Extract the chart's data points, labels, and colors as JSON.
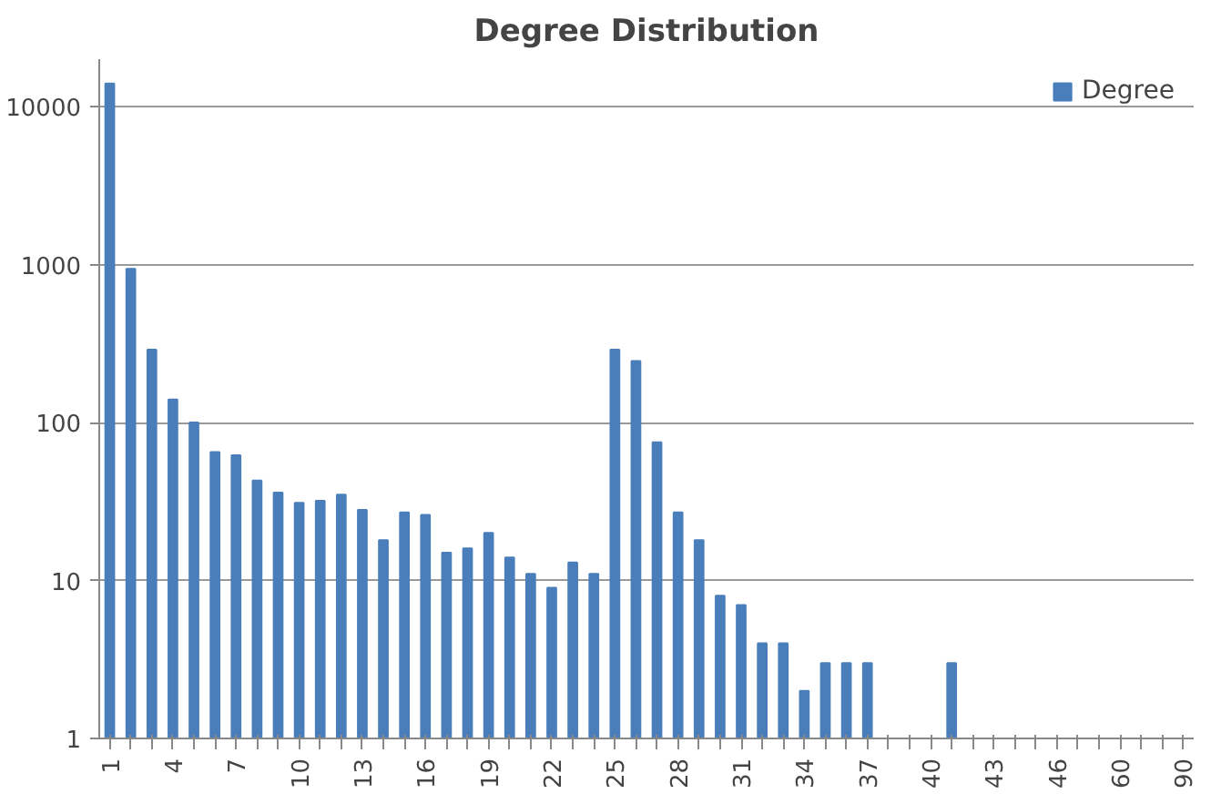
{
  "chart_data": {
    "type": "bar",
    "title": "Degree Distribution",
    "categories": [
      "1",
      null,
      null,
      "4",
      null,
      null,
      "7",
      null,
      null,
      "10",
      null,
      null,
      "13",
      null,
      null,
      "16",
      null,
      null,
      "19",
      null,
      null,
      "22",
      null,
      null,
      "25",
      null,
      null,
      "28",
      null,
      null,
      "31",
      null,
      null,
      "34",
      null,
      null,
      "37",
      null,
      null,
      "40",
      null,
      null,
      "43",
      null,
      null,
      "46",
      null,
      null,
      "60",
      null,
      null,
      "90"
    ],
    "series": [
      {
        "name": "Degree",
        "color": "#4a7ebb",
        "values": [
          14000,
          940,
          290,
          140,
          100,
          65,
          62,
          43,
          36,
          31,
          32,
          35,
          28,
          18,
          27,
          26,
          15,
          16,
          20,
          14,
          11,
          9,
          13,
          11,
          290,
          245,
          75,
          27,
          18,
          8,
          7,
          4,
          4,
          2,
          3,
          3,
          3,
          null,
          null,
          null,
          3,
          null,
          null,
          null,
          null,
          null,
          null,
          null,
          null,
          null,
          null,
          null
        ]
      }
    ],
    "log": "y",
    "ylim": [
      1,
      20000
    ],
    "yticks": [
      1,
      10,
      100,
      1000,
      10000
    ],
    "grid": "y",
    "legend": "top right"
  }
}
